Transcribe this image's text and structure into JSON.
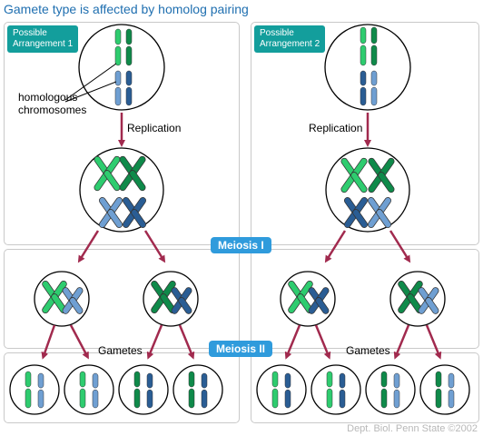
{
  "title": "Gamete type is affected by homolog pairing",
  "arrangement_1_label": "Possible\nArrangement 1",
  "arrangement_2_label": "Possible\nArrangement 2",
  "homologous_label": "homologous\nchromosomes",
  "replication_label": "Replication",
  "meiosis1_label": "Meiosis I",
  "meiosis2_label": "Meiosis II",
  "gametes_label": "Gametes",
  "credit": "Dept. Biol. Penn State ©2002",
  "colors": {
    "light_green": "#2ecc6f",
    "dark_green": "#0f8a4a",
    "light_blue": "#6f9fd2",
    "dark_blue": "#2a5d94",
    "arrow": "#a12a4e",
    "tag": "#139e9c",
    "pill": "#2f9bdc"
  }
}
